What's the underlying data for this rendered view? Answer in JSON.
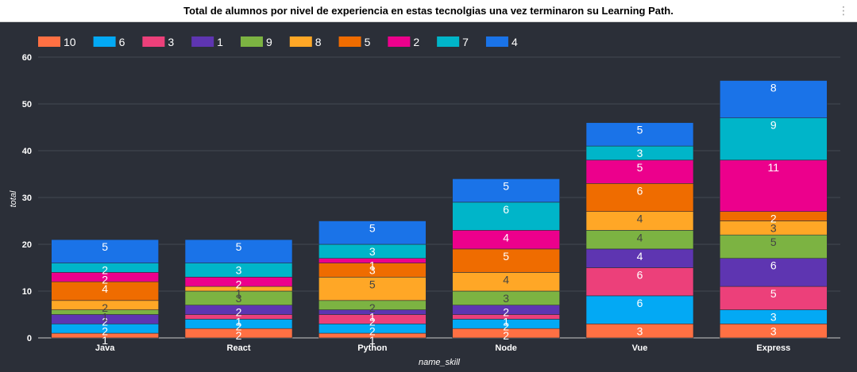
{
  "header": {
    "menu_icon": "kebab-menu-icon"
  },
  "chart_data": {
    "type": "bar",
    "stacked": true,
    "title": "Total de alumnos por nivel de experiencia en estas tecnolgias una vez terminaron su Learning Path.",
    "xlabel": "name_skill",
    "ylabel": "total",
    "ylim": [
      0,
      60
    ],
    "yticks": [
      0,
      10,
      20,
      30,
      40,
      50,
      60
    ],
    "grid": true,
    "legend_position": "top-left",
    "categories": [
      "Java",
      "React",
      "Python",
      "Node",
      "Vue",
      "Express"
    ],
    "series": [
      {
        "name": "10",
        "color": "#ff7043",
        "values": [
          1,
          2,
          1,
          2,
          3,
          3
        ]
      },
      {
        "name": "6",
        "color": "#03a9f4",
        "values": [
          2,
          2,
          2,
          2,
          6,
          3
        ]
      },
      {
        "name": "3",
        "color": "#ec407a",
        "values": [
          0,
          1,
          2,
          1,
          6,
          5
        ]
      },
      {
        "name": "1",
        "color": "#5e35b1",
        "values": [
          2,
          2,
          1,
          2,
          4,
          6
        ]
      },
      {
        "name": "9",
        "color": "#7cb342",
        "values": [
          1,
          3,
          2,
          3,
          4,
          5
        ]
      },
      {
        "name": "8",
        "color": "#ffa726",
        "values": [
          2,
          1,
          5,
          4,
          4,
          3
        ]
      },
      {
        "name": "5",
        "color": "#ef6c00",
        "values": [
          4,
          0,
          3,
          5,
          6,
          2
        ]
      },
      {
        "name": "2",
        "color": "#ec008c",
        "values": [
          2,
          2,
          1,
          4,
          5,
          11
        ]
      },
      {
        "name": "7",
        "color": "#00b5c9",
        "values": [
          2,
          3,
          3,
          6,
          3,
          9
        ]
      },
      {
        "name": "4",
        "color": "#1a73e8",
        "values": [
          5,
          5,
          5,
          5,
          5,
          8
        ]
      }
    ]
  }
}
